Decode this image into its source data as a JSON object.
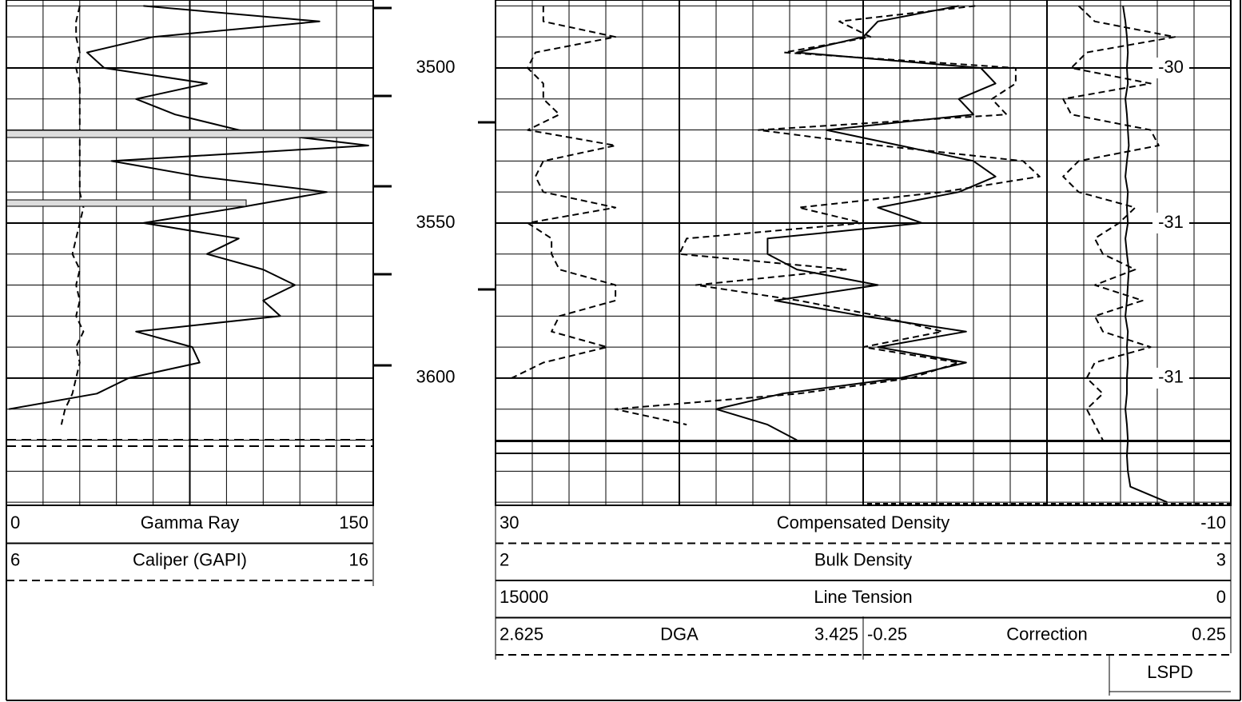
{
  "chart_data": {
    "type": "well_log",
    "ylim": [
      3478.1,
      3641
    ],
    "yticks": [
      3500,
      3550,
      3600
    ],
    "grid_depths": [
      3480,
      3490,
      3500,
      3510,
      3520,
      3530,
      3540,
      3550,
      3560,
      3570,
      3580,
      3590,
      3600,
      3610,
      3620,
      3630,
      3640
    ],
    "grid": true,
    "depths": [
      3480,
      3485,
      3490,
      3495,
      3500,
      3505,
      3510,
      3515,
      3520,
      3525,
      3530,
      3535,
      3540,
      3545,
      3550,
      3555,
      3560,
      3565,
      3570,
      3575,
      3580,
      3585,
      3590,
      3595,
      3600,
      3605,
      3610,
      3615,
      3620,
      3625,
      3630,
      3635,
      3640
    ],
    "series": [
      {
        "name": "Gamma Ray",
        "scale": [
          0,
          150
        ],
        "line_style": "solid",
        "color": "#000000",
        "values": [
          56,
          128,
          60,
          33,
          40,
          82,
          53,
          69,
          95,
          148,
          43,
          79,
          131,
          95,
          56,
          95,
          82,
          105,
          118,
          105,
          112,
          53,
          76,
          79,
          50,
          37,
          1,
          null,
          null,
          null,
          null,
          null,
          null
        ]
      },
      {
        "name": "Caliper (GAPI)",
        "scale": [
          6,
          16
        ],
        "line_style": "dashed",
        "color": "#000000",
        "values": [
          8,
          7.9,
          7.9,
          8,
          7.9,
          8,
          8,
          8,
          8,
          8,
          8,
          8,
          8,
          8.1,
          8,
          7.9,
          7.8,
          8,
          7.9,
          8,
          7.9,
          8.1,
          7.9,
          8,
          7.9,
          7.8,
          7.6,
          7.5,
          null,
          null,
          null,
          null,
          null
        ]
      },
      {
        "name": "Compensated Density",
        "scale": [
          30,
          -10
        ],
        "line_style": "dashed",
        "color": "#000000",
        "values": [
          3.9,
          11.3,
          9.6,
          14.3,
          1.7,
          1.7,
          3.0,
          2.2,
          15.7,
          9.1,
          1.3,
          0.4,
          5.7,
          13.5,
          10.0,
          19.6,
          20.0,
          10.9,
          19.1,
          13.5,
          9.1,
          5.7,
          10.0,
          4.8,
          7.4,
          13.5,
          23.5,
          19.6,
          null,
          null,
          null,
          null,
          null
        ]
      },
      {
        "name": "Bulk Density",
        "scale": [
          2,
          3
        ],
        "line_style": "solid",
        "color": "#000000",
        "values": [
          2.63,
          2.52,
          2.5,
          2.41,
          2.66,
          2.68,
          2.63,
          2.65,
          2.45,
          2.55,
          2.65,
          2.68,
          2.63,
          2.52,
          2.58,
          2.37,
          2.37,
          2.41,
          2.52,
          2.38,
          2.5,
          2.64,
          2.52,
          2.64,
          2.55,
          2.39,
          2.3,
          2.37,
          2.41,
          null,
          null,
          null,
          null
        ]
      },
      {
        "name": "Line Tension",
        "scale": [
          15000,
          0
        ],
        "line_style": "solid",
        "color": "#000000",
        "values": [
          2200,
          2150,
          2120,
          2100,
          2120,
          2100,
          2150,
          2120,
          2100,
          2080,
          2120,
          2150,
          2100,
          2120,
          2100,
          2150,
          2120,
          2080,
          2100,
          2120,
          2150,
          2100,
          2120,
          2100,
          2120,
          2120,
          2150,
          2120,
          2100,
          2120,
          2100,
          2050,
          1300
        ]
      },
      {
        "name": "DGA",
        "scale": [
          2.625,
          3.425
        ],
        "line_style": "dashed",
        "color": "#000000",
        "values": [
          2.729,
          2.729,
          2.886,
          2.712,
          2.695,
          2.729,
          2.729,
          2.764,
          2.695,
          2.886,
          2.729,
          2.712,
          2.729,
          2.886,
          2.695,
          2.747,
          2.747,
          2.764,
          2.886,
          2.886,
          2.764,
          2.747,
          2.868,
          2.729,
          2.66,
          null,
          null,
          null,
          null,
          null,
          null,
          null,
          null
        ]
      },
      {
        "name": "Correction",
        "scale": [
          -0.25,
          0.25
        ],
        "line_style": "dashed",
        "color": "#000000",
        "values": [
          0.043,
          0.065,
          0.174,
          0.054,
          0.033,
          0.141,
          0.022,
          0.033,
          0.141,
          0.152,
          0.043,
          0.022,
          0.043,
          0.12,
          0.098,
          0.065,
          0.076,
          0.12,
          0.065,
          0.13,
          0.065,
          0.076,
          0.141,
          0.065,
          0.054,
          0.076,
          0.054,
          0.065,
          0.076,
          null,
          null,
          null,
          null
        ]
      }
    ],
    "annotations": {
      "values": [
        -30,
        -31,
        -31
      ],
      "depths": [
        3500,
        3550,
        3600
      ]
    },
    "extra_legend": "LSPD"
  }
}
